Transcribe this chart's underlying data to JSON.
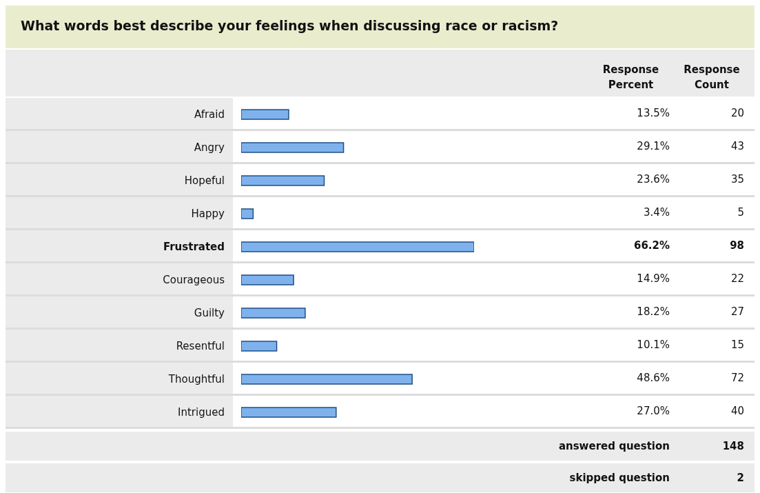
{
  "chart_data": {
    "type": "bar",
    "orientation": "horizontal",
    "title": "What words best describe your feelings when discussing race or racism?",
    "categories": [
      "Afraid",
      "Angry",
      "Hopeful",
      "Happy",
      "Frustrated",
      "Courageous",
      "Guilty",
      "Resentful",
      "Thoughtful",
      "Intrigued"
    ],
    "values": [
      13.5,
      29.1,
      23.6,
      3.4,
      66.2,
      14.9,
      18.2,
      10.1,
      48.6,
      27.0
    ],
    "value_labels": [
      "13.5%",
      "29.1%",
      "23.6%",
      "3.4%",
      "66.2%",
      "14.9%",
      "18.2%",
      "10.1%",
      "48.6%",
      "27.0%"
    ],
    "color": "#7fb2ec",
    "tick_labels": "y",
    "annotations": [
      "Response Percent",
      "Response Count",
      "20",
      "43",
      "35",
      "5",
      "98",
      "22",
      "27",
      "15",
      "72",
      "40",
      "answered question",
      "148",
      "skipped question",
      "2"
    ]
  }
}
